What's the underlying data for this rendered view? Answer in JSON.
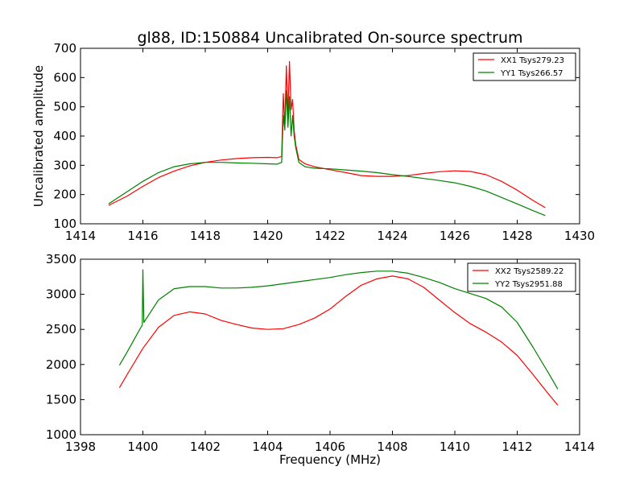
{
  "figure": {
    "title": "gl88, ID:150884 Uncalibrated On-source spectrum",
    "colors": {
      "xx": "#ff0000",
      "yy": "#008000",
      "frame": "#000000"
    }
  },
  "chart_data": [
    {
      "type": "line",
      "title": "gl88, ID:150884 Uncalibrated On-source spectrum",
      "xlabel": "",
      "ylabel": "Uncalibrated amplitude",
      "xlim": [
        1414,
        1430
      ],
      "ylim": [
        100,
        700
      ],
      "xticks": [
        "1414",
        "1416",
        "1418",
        "1420",
        "1422",
        "1424",
        "1426",
        "1428",
        "1430"
      ],
      "yticks": [
        "100",
        "200",
        "300",
        "400",
        "500",
        "600",
        "700"
      ],
      "grid": false,
      "legend_position": "top-right",
      "series": [
        {
          "name": "XX1 Tsys279.23",
          "color": "#ff0000",
          "x": [
            1414.9,
            1415.5,
            1416.0,
            1416.5,
            1417.0,
            1417.5,
            1418.0,
            1418.5,
            1419.0,
            1419.5,
            1420.0,
            1420.3,
            1420.45,
            1420.5,
            1420.55,
            1420.6,
            1420.65,
            1420.7,
            1420.75,
            1420.8,
            1420.85,
            1420.9,
            1421.0,
            1421.2,
            1421.5,
            1422.0,
            1422.5,
            1423.0,
            1423.5,
            1424.0,
            1424.5,
            1425.0,
            1425.5,
            1426.0,
            1426.5,
            1427.0,
            1427.5,
            1428.0,
            1428.5,
            1428.9
          ],
          "values": [
            163,
            195,
            228,
            258,
            280,
            298,
            310,
            318,
            323,
            326,
            327,
            326,
            330,
            545,
            430,
            640,
            470,
            655,
            490,
            525,
            420,
            370,
            320,
            305,
            295,
            285,
            275,
            265,
            262,
            262,
            265,
            272,
            278,
            281,
            279,
            268,
            245,
            215,
            180,
            155
          ]
        },
        {
          "name": "YY1 Tsys266.57",
          "color": "#008000",
          "x": [
            1414.9,
            1415.5,
            1416.0,
            1416.5,
            1417.0,
            1417.5,
            1418.0,
            1418.5,
            1419.0,
            1419.5,
            1420.0,
            1420.3,
            1420.45,
            1420.5,
            1420.55,
            1420.6,
            1420.65,
            1420.7,
            1420.75,
            1420.8,
            1420.85,
            1420.9,
            1421.0,
            1421.2,
            1421.5,
            1422.0,
            1422.5,
            1423.0,
            1423.5,
            1424.0,
            1424.5,
            1425.0,
            1425.5,
            1426.0,
            1426.5,
            1427.0,
            1427.5,
            1428.0,
            1428.5,
            1428.9
          ],
          "values": [
            168,
            210,
            245,
            275,
            295,
            305,
            310,
            310,
            308,
            307,
            305,
            304,
            310,
            470,
            420,
            555,
            430,
            535,
            400,
            470,
            400,
            360,
            310,
            295,
            290,
            288,
            284,
            280,
            275,
            268,
            262,
            255,
            248,
            240,
            228,
            212,
            190,
            168,
            145,
            128
          ]
        }
      ]
    },
    {
      "type": "line",
      "title": "",
      "xlabel": "Frequency (MHz)",
      "ylabel": "",
      "xlim": [
        1398,
        1414
      ],
      "ylim": [
        1000,
        3500
      ],
      "xticks": [
        "1398",
        "1400",
        "1402",
        "1404",
        "1406",
        "1408",
        "1410",
        "1412",
        "1414"
      ],
      "yticks": [
        "1000",
        "1500",
        "2000",
        "2500",
        "3000",
        "3500"
      ],
      "grid": false,
      "legend_position": "top-right",
      "series": [
        {
          "name": "XX2 Tsys2589.22",
          "color": "#ff0000",
          "x": [
            1399.25,
            1399.5,
            1400.0,
            1400.5,
            1401.0,
            1401.5,
            1402.0,
            1402.5,
            1403.0,
            1403.5,
            1404.0,
            1404.5,
            1405.0,
            1405.5,
            1406.0,
            1406.5,
            1407.0,
            1407.5,
            1408.0,
            1408.5,
            1409.0,
            1409.5,
            1410.0,
            1410.5,
            1411.0,
            1411.5,
            1412.0,
            1412.5,
            1413.0,
            1413.3
          ],
          "values": [
            1670,
            1860,
            2230,
            2530,
            2700,
            2750,
            2720,
            2630,
            2570,
            2520,
            2500,
            2510,
            2570,
            2660,
            2790,
            2970,
            3130,
            3220,
            3260,
            3220,
            3100,
            2920,
            2740,
            2580,
            2460,
            2320,
            2130,
            1860,
            1580,
            1420
          ]
        },
        {
          "name": "YY2 Tsys2951.88",
          "color": "#008000",
          "x": [
            1399.25,
            1399.5,
            1399.9,
            1399.98,
            1400.0,
            1400.03,
            1400.5,
            1401.0,
            1401.5,
            1402.0,
            1402.5,
            1403.0,
            1403.5,
            1404.0,
            1404.5,
            1405.0,
            1405.5,
            1406.0,
            1406.5,
            1407.0,
            1407.5,
            1408.0,
            1408.5,
            1409.0,
            1409.5,
            1410.0,
            1410.5,
            1411.0,
            1411.5,
            1412.0,
            1412.5,
            1413.0,
            1413.3
          ],
          "values": [
            1990,
            2180,
            2500,
            2560,
            3350,
            2600,
            2920,
            3080,
            3110,
            3110,
            3090,
            3090,
            3100,
            3120,
            3150,
            3180,
            3210,
            3240,
            3280,
            3310,
            3330,
            3330,
            3300,
            3240,
            3170,
            3080,
            3010,
            2940,
            2820,
            2600,
            2250,
            1880,
            1650
          ]
        }
      ]
    }
  ]
}
